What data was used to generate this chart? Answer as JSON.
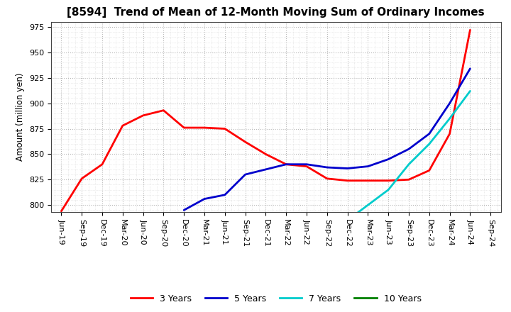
{
  "title": "[8594]  Trend of Mean of 12-Month Moving Sum of Ordinary Incomes",
  "ylabel": "Amount (million yen)",
  "ylim": [
    793,
    980
  ],
  "yticks": [
    800,
    825,
    850,
    875,
    900,
    925,
    950,
    975
  ],
  "background_color": "#ffffff",
  "plot_bg_color": "#f0f0f8",
  "grid_color": "#999999",
  "grid_minor_color": "#cccccc",
  "line_3y_color": "#ff0000",
  "line_5y_color": "#0000cc",
  "line_7y_color": "#00cccc",
  "line_10y_color": "#008000",
  "x_labels": [
    "Jun-19",
    "Sep-19",
    "Dec-19",
    "Mar-20",
    "Jun-20",
    "Sep-20",
    "Dec-20",
    "Mar-21",
    "Jun-21",
    "Sep-21",
    "Dec-21",
    "Mar-22",
    "Jun-22",
    "Sep-22",
    "Dec-22",
    "Mar-23",
    "Jun-23",
    "Sep-23",
    "Dec-23",
    "Mar-24",
    "Jun-24",
    "Sep-24"
  ],
  "series_3y": [
    794,
    826,
    840,
    878,
    888,
    893,
    876,
    876,
    875,
    862,
    850,
    840,
    838,
    826,
    824,
    824,
    824,
    825,
    834,
    870,
    972,
    null
  ],
  "series_5y": [
    null,
    null,
    null,
    null,
    null,
    null,
    795,
    806,
    810,
    830,
    835,
    840,
    840,
    837,
    836,
    838,
    845,
    855,
    870,
    900,
    934,
    null
  ],
  "series_7y": [
    null,
    null,
    null,
    null,
    null,
    null,
    null,
    null,
    null,
    null,
    null,
    null,
    null,
    null,
    785,
    800,
    815,
    840,
    860,
    885,
    912,
    null
  ],
  "series_10y": [
    null,
    null,
    null,
    null,
    null,
    null,
    null,
    null,
    null,
    null,
    null,
    null,
    null,
    null,
    null,
    null,
    null,
    null,
    null,
    null,
    null,
    null
  ],
  "legend_labels": [
    "3 Years",
    "5 Years",
    "7 Years",
    "10 Years"
  ],
  "title_fontsize": 11,
  "axis_fontsize": 8.5,
  "tick_fontsize": 8,
  "legend_fontsize": 9
}
